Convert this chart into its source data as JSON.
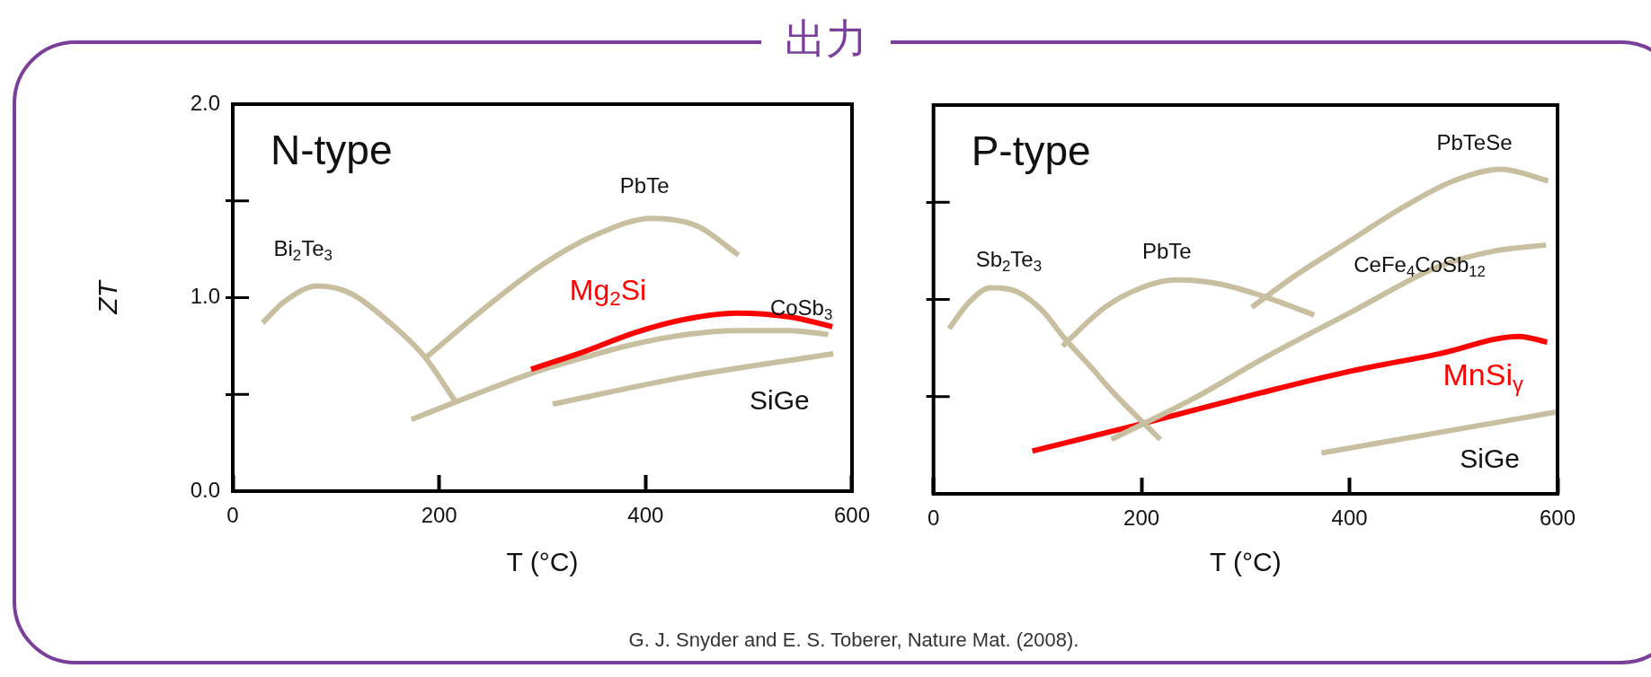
{
  "chart_data": [
    {
      "type": "line",
      "title": "N-type",
      "xlabel": "T (°C)",
      "ylabel": "ZT",
      "xlim": [
        0,
        600
      ],
      "ylim": [
        0,
        2
      ],
      "xticks": [
        0,
        200,
        400,
        600
      ],
      "yticks": [
        {
          "value": 0,
          "label": "0.0"
        },
        {
          "value": 0.5,
          "label": null
        },
        {
          "value": 1,
          "label": "1.0"
        },
        {
          "value": 1.5,
          "label": null
        },
        {
          "value": 2,
          "label": "2.0"
        }
      ],
      "marker": "none",
      "annotations": [
        "出力",
        "G. J. Snyder and E. S. Toberer, Nature Mat. (2008)."
      ],
      "series": [
        {
          "name": "Bi$_{2}$Te$_{3}$",
          "color": "#c8bfa0",
          "x": [
            29,
            50,
            82,
            115,
            150,
            185,
            215
          ],
          "values": [
            0.87,
            0.98,
            1.06,
            1.02,
            0.88,
            0.7,
            0.47
          ]
        },
        {
          "name": "PbTe",
          "color": "#c8bfa0",
          "x": [
            187,
            250,
            300,
            350,
            406,
            450,
            490
          ],
          "values": [
            0.69,
            0.97,
            1.17,
            1.32,
            1.41,
            1.37,
            1.22
          ]
        },
        {
          "name": "Mg$_{2}$Si",
          "color": "#ff0000",
          "x": [
            289,
            340,
            390,
            440,
            488,
            540,
            581
          ],
          "values": [
            0.63,
            0.72,
            0.82,
            0.89,
            0.92,
            0.9,
            0.85
          ]
        },
        {
          "name": "CoSb$_{3}$",
          "color": "#c8bfa0",
          "x": [
            173,
            230,
            290,
            340,
            389,
            440,
            488,
            540,
            577
          ],
          "values": [
            0.37,
            0.49,
            0.61,
            0.69,
            0.76,
            0.81,
            0.83,
            0.83,
            0.81
          ]
        },
        {
          "name": "SiGe",
          "color": "#c8bfa0",
          "x": [
            310,
            438,
            582
          ],
          "values": [
            0.45,
            0.59,
            0.71
          ]
        }
      ]
    },
    {
      "type": "line",
      "title": "P-type",
      "xlabel": "T (°C)",
      "xlim": [
        0,
        600
      ],
      "ylim": [
        0,
        2
      ],
      "xticks": [
        0,
        200,
        400,
        600
      ],
      "yticks": [
        {
          "value": 0,
          "label": null
        },
        {
          "value": 0.5,
          "label": null
        },
        {
          "value": 1,
          "label": null
        },
        {
          "value": 1.5,
          "label": null
        },
        {
          "value": 2,
          "label": null
        }
      ],
      "tick_labels": "x",
      "marker": "none",
      "series": [
        {
          "name": "Sb$_{2}$Te$_{3}$",
          "color": "#c8bfa0",
          "x": [
            15,
            35,
            55,
            80,
            105,
            126,
            150,
            173,
            218
          ],
          "values": [
            0.85,
            0.99,
            1.06,
            1.04,
            0.94,
            0.8,
            0.66,
            0.52,
            0.28
          ]
        },
        {
          "name": "PbTe",
          "color": "#c8bfa0",
          "x": [
            124,
            165,
            200,
            233,
            275,
            315,
            366
          ],
          "values": [
            0.76,
            0.96,
            1.06,
            1.1,
            1.08,
            1.02,
            0.92
          ]
        },
        {
          "name": "PbTeSe",
          "color": "#c8bfa0",
          "x": [
            306,
            350,
            400,
            450,
            500,
            546,
            591
          ],
          "values": [
            0.96,
            1.13,
            1.3,
            1.47,
            1.61,
            1.67,
            1.61
          ]
        },
        {
          "name": "CeFe$_{4}$CoSb$_{12}$",
          "color": "#c8bfa0",
          "x": [
            171,
            250,
            315,
            400,
            486,
            540,
            589
          ],
          "values": [
            0.28,
            0.49,
            0.69,
            0.93,
            1.17,
            1.25,
            1.28
          ]
        },
        {
          "name": "MnSi$_{γ}$",
          "color": "#ff0000",
          "x": [
            95,
            200,
            315,
            400,
            486,
            563,
            590
          ],
          "values": [
            0.22,
            0.36,
            0.52,
            0.63,
            0.72,
            0.81,
            0.78
          ]
        },
        {
          "name": "SiGe",
          "color": "#c8bfa0",
          "x": [
            373,
            480,
            598
          ],
          "values": [
            0.21,
            0.31,
            0.42
          ]
        }
      ]
    }
  ]
}
